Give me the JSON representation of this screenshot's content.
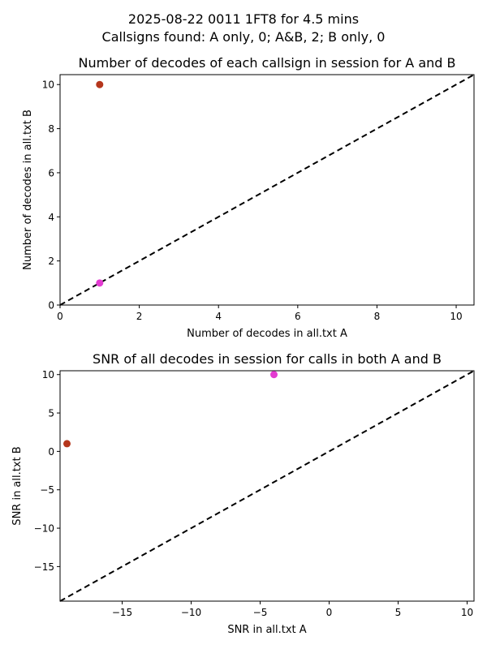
{
  "figure": {
    "suptitle_line1": "2025-08-22 0011 1FT8 for 4.5 mins",
    "suptitle_line2": "Callsigns found: A only, 0; A&B, 2; B only, 0"
  },
  "chart_data": [
    {
      "type": "scatter",
      "title": "Number of decodes of each callsign in session for A and B",
      "xlabel": "Number of decodes in all.txt A",
      "ylabel": "Number of decodes in all.txt B",
      "xlim": [
        0,
        10.45
      ],
      "ylim": [
        0,
        10.45
      ],
      "xticks": [
        0,
        2,
        4,
        6,
        8,
        10
      ],
      "yticks": [
        0,
        2,
        4,
        6,
        8,
        10
      ],
      "grid": false,
      "reference_line": {
        "style": "dashed",
        "color": "#000000",
        "description": "y = x"
      },
      "points": [
        {
          "x": 1,
          "y": 10,
          "color": "#b5361c"
        },
        {
          "x": 1,
          "y": 1,
          "color": "#e33bd1"
        }
      ]
    },
    {
      "type": "scatter",
      "title": "SNR of all decodes in session for calls in both A and B",
      "xlabel": "SNR in all.txt A",
      "ylabel": "SNR in all.txt B",
      "xlim": [
        -19.5,
        10.5
      ],
      "ylim": [
        -19.5,
        10.5
      ],
      "xticks": [
        -15,
        -10,
        -5,
        0,
        5,
        10
      ],
      "yticks": [
        -15,
        -10,
        -5,
        0,
        5,
        10
      ],
      "grid": false,
      "reference_line": {
        "style": "dashed",
        "color": "#000000",
        "description": "y = x"
      },
      "points": [
        {
          "x": -19,
          "y": 1,
          "color": "#b5361c"
        },
        {
          "x": -4,
          "y": 10,
          "color": "#e33bd1"
        }
      ]
    }
  ]
}
